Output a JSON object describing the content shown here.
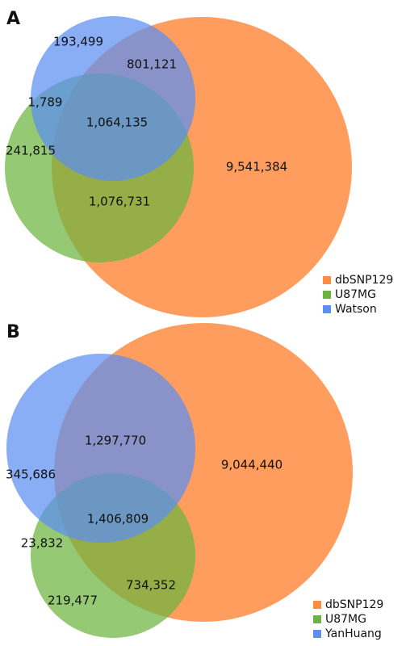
{
  "panels": [
    {
      "label": "A",
      "sets": [
        {
          "name": "dbSNP129",
          "color": "#ff8c42"
        },
        {
          "name": "U87MG",
          "color": "#6cb43f"
        },
        {
          "name": "Watson",
          "color": "#5b8ff2"
        }
      ],
      "regions": [
        "193,499",
        "801,121",
        "1,789",
        "1,064,135",
        "241,815",
        "9,541,384",
        "1,076,731"
      ]
    },
    {
      "label": "B",
      "sets": [
        {
          "name": "dbSNP129",
          "color": "#ff8c42"
        },
        {
          "name": "U87MG",
          "color": "#6cb43f"
        },
        {
          "name": "YanHuang",
          "color": "#5b8ff2"
        }
      ],
      "regions": [
        "1,297,770",
        "9,044,440",
        "345,686",
        "1,406,809",
        "23,832",
        "734,352",
        "219,477"
      ]
    }
  ]
}
